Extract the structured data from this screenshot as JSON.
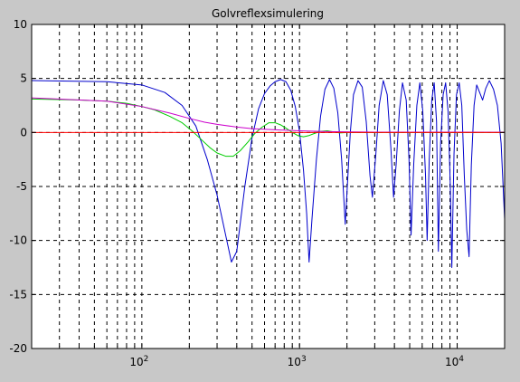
{
  "chart_data": {
    "type": "line",
    "title": "Golvreflexsimulering",
    "xlabel": "",
    "ylabel": "",
    "xscale": "log",
    "xlim": [
      20,
      20000
    ],
    "ylim": [
      -20,
      10
    ],
    "grid": true,
    "y_ticks": [
      10,
      5,
      0,
      -5,
      -10,
      -15,
      -20
    ],
    "x_major_ticks": [
      {
        "value": 100,
        "base": "10",
        "exp": "2"
      },
      {
        "value": 1000,
        "base": "10",
        "exp": "3"
      },
      {
        "value": 10000,
        "base": "10",
        "exp": "4"
      }
    ],
    "series": [
      {
        "color": "#0000cc",
        "points": [
          [
            20,
            4.8
          ],
          [
            60,
            4.7
          ],
          [
            100,
            4.4
          ],
          [
            140,
            3.7
          ],
          [
            180,
            2.5
          ],
          [
            220,
            0.6
          ],
          [
            260,
            -2.5
          ],
          [
            300,
            -5.8
          ],
          [
            340,
            -9.5
          ],
          [
            370,
            -12
          ],
          [
            400,
            -11
          ],
          [
            450,
            -5
          ],
          [
            500,
            -0.5
          ],
          [
            550,
            2.2
          ],
          [
            600,
            3.6
          ],
          [
            650,
            4.3
          ],
          [
            700,
            4.7
          ],
          [
            760,
            4.9
          ],
          [
            820,
            4.7
          ],
          [
            880,
            3.9
          ],
          [
            940,
            2.4
          ],
          [
            1000,
            0.1
          ],
          [
            1060,
            -3.5
          ],
          [
            1110,
            -7.5
          ],
          [
            1150,
            -12
          ],
          [
            1200,
            -8
          ],
          [
            1280,
            -2.5
          ],
          [
            1360,
            1.5
          ],
          [
            1450,
            4
          ],
          [
            1550,
            4.9
          ],
          [
            1650,
            4.1
          ],
          [
            1750,
            1.8
          ],
          [
            1850,
            -2.5
          ],
          [
            1950,
            -8.5
          ],
          [
            2010,
            -5
          ],
          [
            2100,
            0
          ],
          [
            2200,
            3.5
          ],
          [
            2350,
            4.8
          ],
          [
            2500,
            4.2
          ],
          [
            2650,
            1
          ],
          [
            2800,
            -4
          ],
          [
            2900,
            -6
          ],
          [
            3050,
            -2
          ],
          [
            3200,
            2.5
          ],
          [
            3400,
            4.8
          ],
          [
            3600,
            3.5
          ],
          [
            3800,
            -1.5
          ],
          [
            3950,
            -6
          ],
          [
            4100,
            -3
          ],
          [
            4300,
            2
          ],
          [
            4500,
            4.6
          ],
          [
            4750,
            3
          ],
          [
            4950,
            -2.5
          ],
          [
            5100,
            -9.5
          ],
          [
            5300,
            -3
          ],
          [
            5550,
            2.5
          ],
          [
            5800,
            4.6
          ],
          [
            6050,
            2
          ],
          [
            6300,
            -4
          ],
          [
            6450,
            -10
          ],
          [
            6650,
            -2.5
          ],
          [
            6900,
            3
          ],
          [
            7150,
            4.6
          ],
          [
            7400,
            1
          ],
          [
            7600,
            -11
          ],
          [
            7850,
            -1
          ],
          [
            8150,
            3.5
          ],
          [
            8450,
            4.6
          ],
          [
            8750,
            2
          ],
          [
            9050,
            -5
          ],
          [
            9250,
            -12.5
          ],
          [
            9550,
            -2
          ],
          [
            9900,
            3.5
          ],
          [
            10300,
            4.6
          ],
          [
            10700,
            2.5
          ],
          [
            11100,
            -4
          ],
          [
            11500,
            -9
          ],
          [
            11900,
            -11.5
          ],
          [
            12300,
            -3
          ],
          [
            12800,
            2.5
          ],
          [
            13300,
            4.4
          ],
          [
            13800,
            3.8
          ],
          [
            14500,
            3
          ],
          [
            15200,
            4.1
          ],
          [
            16000,
            4.8
          ],
          [
            17000,
            4
          ],
          [
            18000,
            2.5
          ],
          [
            19000,
            -1
          ],
          [
            20000,
            -8
          ]
        ]
      },
      {
        "color": "#00cc00",
        "points": [
          [
            20,
            3.1
          ],
          [
            40,
            3
          ],
          [
            60,
            2.9
          ],
          [
            80,
            2.7
          ],
          [
            100,
            2.4
          ],
          [
            120,
            2.1
          ],
          [
            150,
            1.5
          ],
          [
            180,
            0.9
          ],
          [
            210,
            0.1
          ],
          [
            240,
            -0.7
          ],
          [
            270,
            -1.4
          ],
          [
            300,
            -1.9
          ],
          [
            340,
            -2.2
          ],
          [
            380,
            -2.2
          ],
          [
            420,
            -1.7
          ],
          [
            470,
            -0.9
          ],
          [
            520,
            -0.1
          ],
          [
            580,
            0.5
          ],
          [
            640,
            0.9
          ],
          [
            700,
            0.9
          ],
          [
            760,
            0.7
          ],
          [
            820,
            0.4
          ],
          [
            900,
            0
          ],
          [
            980,
            -0.3
          ],
          [
            1060,
            -0.4
          ],
          [
            1140,
            -0.3
          ],
          [
            1240,
            -0.1
          ],
          [
            1360,
            0.1
          ],
          [
            1500,
            0.15
          ],
          [
            1650,
            0.05
          ],
          [
            1800,
            -0.05
          ],
          [
            2000,
            0
          ],
          [
            20000,
            0
          ]
        ]
      },
      {
        "color": "#cc00cc",
        "points": [
          [
            20,
            3.2
          ],
          [
            60,
            2.9
          ],
          [
            100,
            2.4
          ],
          [
            150,
            1.8
          ],
          [
            200,
            1.3
          ],
          [
            250,
            0.95
          ],
          [
            300,
            0.75
          ],
          [
            400,
            0.5
          ],
          [
            500,
            0.35
          ],
          [
            700,
            0.25
          ],
          [
            1000,
            0.15
          ],
          [
            1500,
            0.08
          ],
          [
            3000,
            0.03
          ],
          [
            20000,
            0.02
          ]
        ]
      },
      {
        "color": "#ff0000",
        "points": [
          [
            20,
            0
          ],
          [
            20000,
            0
          ]
        ]
      }
    ]
  }
}
